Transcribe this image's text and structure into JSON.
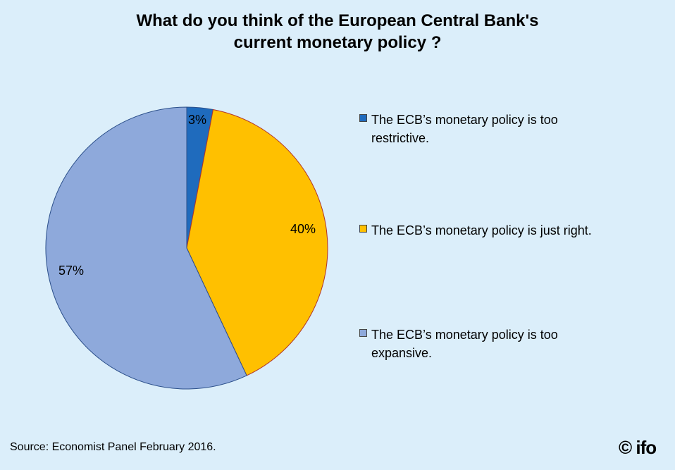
{
  "chart_data": {
    "type": "pie",
    "title": [
      "What do you think of the European Central Bank's",
      "current monetary policy ?"
    ],
    "slices": [
      {
        "label": "The ECB’s monetary policy is too restrictive.",
        "legend_lines": [
          "The ECB’s monetary policy is too",
          "restrictive."
        ],
        "value": 3,
        "value_label": "3%",
        "color": "#1f6bbd"
      },
      {
        "label": "The ECB’s monetary policy is just right.",
        "legend_lines": [
          "The ECB’s monetary policy is just right."
        ],
        "value": 40,
        "value_label": "40%",
        "color": "#ffc000"
      },
      {
        "label": "The ECB’s monetary policy is too expansive.",
        "legend_lines": [
          "The ECB’s monetary policy is too",
          "expansive."
        ],
        "value": 57,
        "value_label": "57%",
        "color": "#8ea9db"
      }
    ],
    "start_angle": "12 o'clock",
    "direction": "clockwise",
    "legend_position": "right"
  },
  "footer": {
    "source": "Source: Economist Panel February 2016.",
    "logo": "© ifo"
  },
  "colors": {
    "background": "#dbeefa"
  }
}
